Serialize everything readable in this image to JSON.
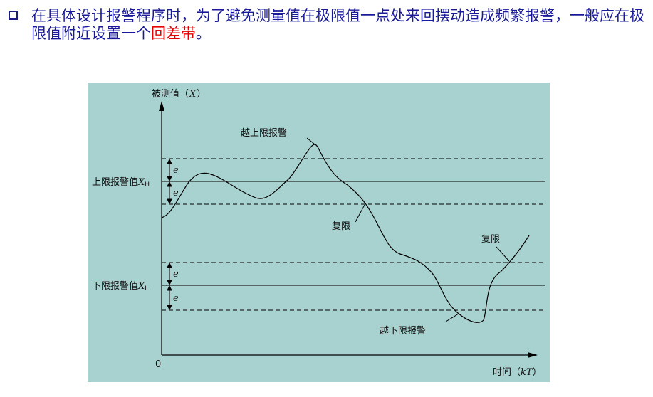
{
  "bullet": {
    "text_before": "在具体设计报警程序时，为了避免测量值在极限值一点处来回摆动造成频繁报警，一般应在极限值附近设置一个",
    "highlight": "回差带",
    "text_after": "。"
  },
  "diagram": {
    "y_axis_label": "被测值（",
    "y_axis_var": "X",
    "y_axis_close": "）",
    "upper_limit_label": "上限报警值",
    "upper_limit_var": "X",
    "upper_limit_sub": "H",
    "lower_limit_label": "下限报警值",
    "lower_limit_var": "X",
    "lower_limit_sub": "L",
    "band_symbol": "e",
    "origin_label": "0",
    "x_axis_label": "时间（",
    "x_axis_var": "kT",
    "x_axis_close": "）",
    "annotation_upper_alarm": "越上限报警",
    "annotation_reset_upper": "复限",
    "annotation_reset_lower": "复限",
    "annotation_lower_alarm": "越下限报警",
    "colors": {
      "background": "#a8d2d0",
      "text": "#1a1a99",
      "highlight": "#e60000"
    }
  }
}
